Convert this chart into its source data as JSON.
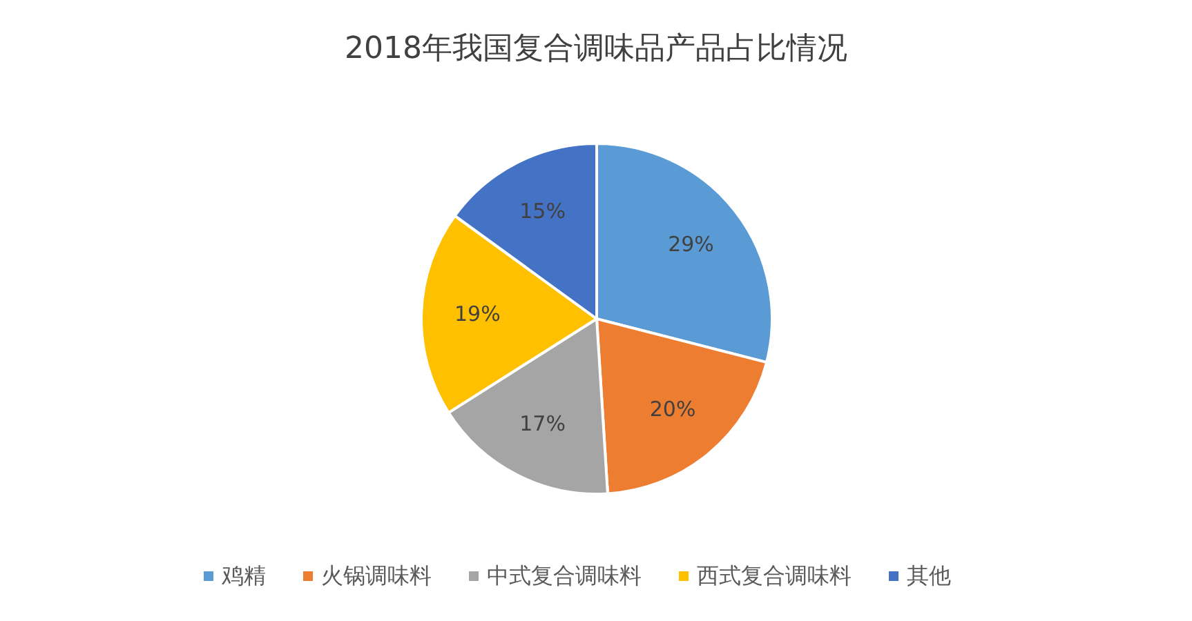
{
  "chart_data": {
    "type": "pie",
    "title": "2018年我国复合调味品产品占比情况",
    "categories": [
      "鸡精",
      "火锅调味料",
      "中式复合调味料",
      "西式复合调味料",
      "其他"
    ],
    "values": [
      29,
      20,
      17,
      19,
      15
    ],
    "value_labels": [
      "29%",
      "20%",
      "17%",
      "19%",
      "15%"
    ],
    "colors": [
      "#5b9bd5",
      "#ed7d31",
      "#a5a5a5",
      "#ffc000",
      "#4472c4"
    ],
    "legend": "bottom"
  }
}
